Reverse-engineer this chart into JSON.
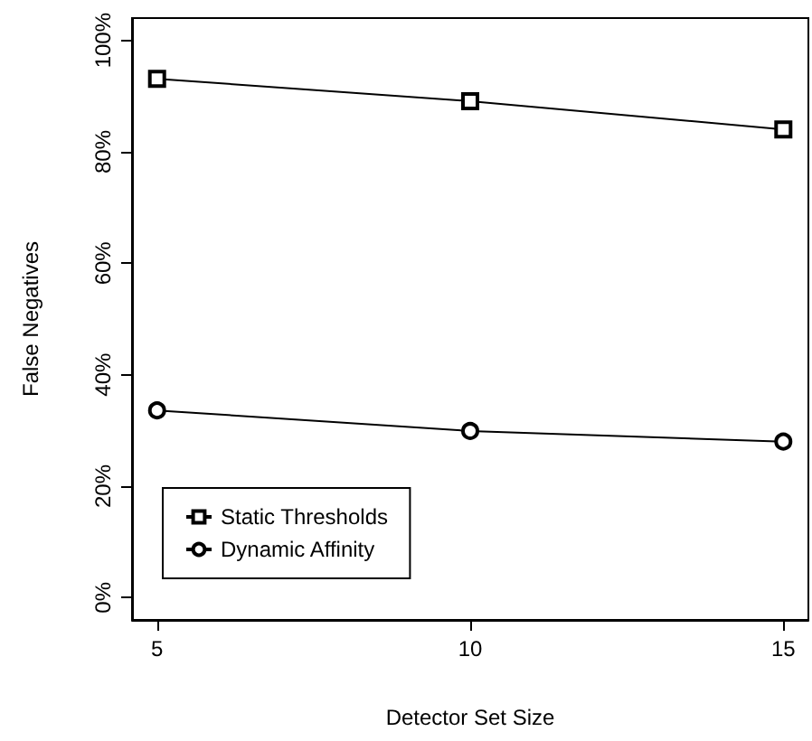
{
  "chart_data": {
    "type": "line",
    "xlabel": "Detector Set Size",
    "ylabel": "False Negatives",
    "x": [
      5,
      10,
      15
    ],
    "series": [
      {
        "name": "Static Thresholds",
        "color": "#000000",
        "marker": "square",
        "values": [
          93.1,
          89.1,
          84.0
        ]
      },
      {
        "name": "Dynamic Affinity",
        "color": "#000000",
        "marker": "circle",
        "values": [
          33.6,
          29.9,
          28.0
        ]
      }
    ],
    "xlim": [
      4.6,
      15.4
    ],
    "xticks": [
      5,
      10,
      15
    ],
    "ylim": [
      -4,
      104
    ],
    "yticks": [
      {
        "value": 0,
        "label": "0%"
      },
      {
        "value": 20,
        "label": "20%"
      },
      {
        "value": 40,
        "label": "40%"
      },
      {
        "value": 60,
        "label": "60%"
      },
      {
        "value": 80,
        "label": "80%"
      },
      {
        "value": 100,
        "label": "100%"
      }
    ],
    "grid": false,
    "legend": "bottom left",
    "line_style": "solid"
  }
}
